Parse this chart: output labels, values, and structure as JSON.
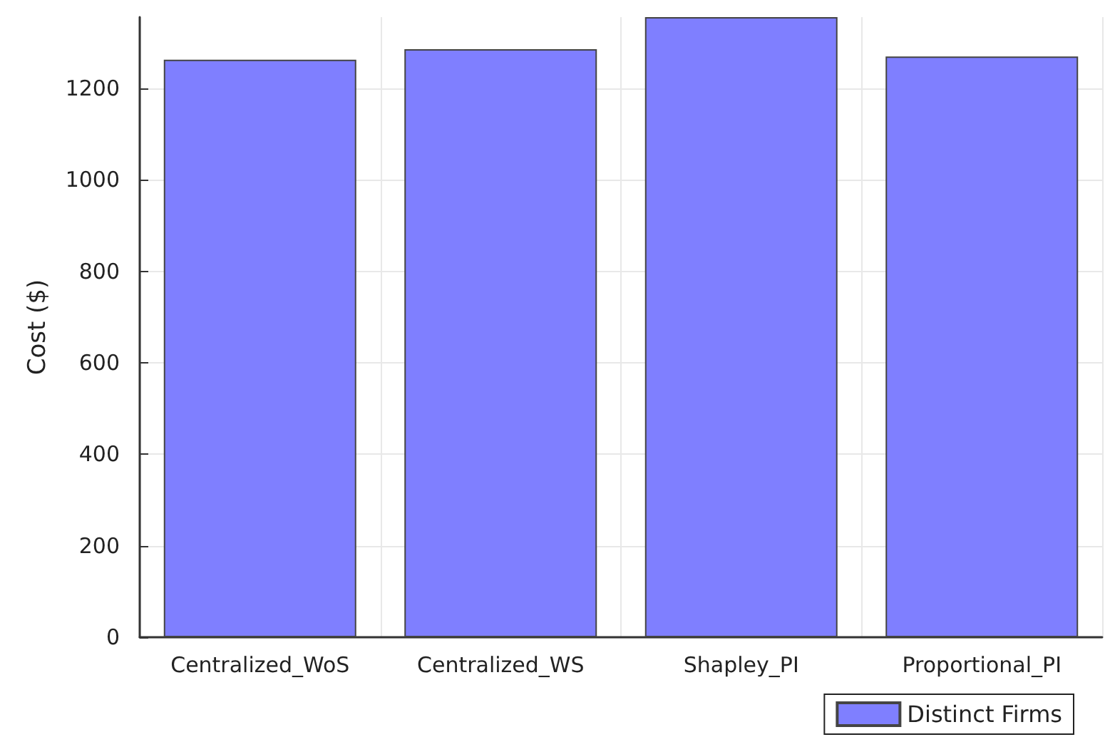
{
  "chart_data": {
    "type": "bar",
    "ylabel": "Cost ($)",
    "categories": [
      "Centralized_WoS",
      "Centralized_WS",
      "Shapley_PI",
      "Proportional_PI"
    ],
    "series": [
      {
        "name": "Distinct Firms",
        "color": "#7f7fff",
        "values": [
          1263,
          1286,
          1356,
          1270
        ]
      }
    ],
    "ylim": [
      0,
      1356
    ],
    "yticks": [
      0,
      200,
      400,
      600,
      800,
      1000,
      1200
    ],
    "grid": true,
    "legend": "bottom right"
  }
}
